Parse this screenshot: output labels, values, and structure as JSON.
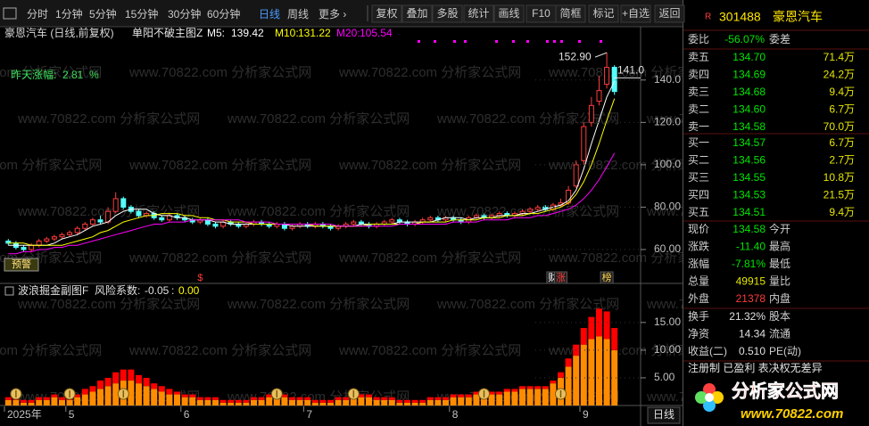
{
  "toolbar": {
    "left": [
      "分时",
      "1分钟",
      "5分钟",
      "15分钟",
      "30分钟",
      "60分钟",
      "日线",
      "周线",
      "更多 ›"
    ],
    "right": [
      "复权",
      "叠加",
      "多股",
      "统计",
      "画线",
      "F10",
      "简框",
      "标记",
      "+自选",
      "返回"
    ]
  },
  "watermark": "www.70822.com 分析家公式网",
  "chart_data": [
    {
      "type": "candlestick",
      "title": "豪恩汽车 (日线,前复权)",
      "indicator": "单阳不破主图Z",
      "categories": [
        "2025年",
        null,
        null,
        null,
        null,
        null,
        null,
        null,
        "5",
        null,
        null,
        null,
        null,
        null,
        null,
        null,
        null,
        null,
        null,
        null,
        null,
        null,
        null,
        "6",
        null,
        null,
        null,
        null,
        null,
        null,
        null,
        null,
        null,
        null,
        null,
        null,
        null,
        null,
        null,
        "7",
        null,
        null,
        null,
        null,
        null,
        null,
        null,
        null,
        null,
        null,
        null,
        null,
        null,
        null,
        null,
        null,
        null,
        null,
        "8",
        null,
        null,
        null,
        null,
        null,
        null,
        null,
        null,
        null,
        null,
        null,
        null,
        null,
        null,
        null,
        null,
        "9",
        null,
        null,
        null,
        null
      ],
      "open": [
        64,
        63,
        61,
        60,
        62,
        64,
        65,
        66,
        67,
        68,
        70,
        72,
        74,
        73,
        78,
        84,
        80,
        78,
        76,
        77,
        75,
        74,
        76,
        75,
        74,
        73,
        74,
        72,
        71,
        73,
        72,
        71,
        72,
        73,
        72,
        71,
        72,
        70,
        71,
        72,
        71,
        72,
        71,
        70,
        71,
        72,
        73,
        72,
        71,
        72,
        73,
        74,
        73,
        72,
        73,
        74,
        75,
        74,
        75,
        74,
        73,
        75,
        76,
        75,
        76,
        77,
        76,
        77,
        78,
        79,
        80,
        79,
        81,
        82,
        90,
        102,
        120,
        130,
        138,
        146
      ],
      "high": [
        65,
        64,
        62,
        63,
        65,
        66,
        67,
        68,
        69,
        71,
        73,
        75,
        76,
        80,
        87,
        85,
        81,
        79,
        78,
        78,
        76,
        77,
        77,
        76,
        75,
        75,
        75,
        73,
        74,
        74,
        73,
        73,
        74,
        74,
        73,
        73,
        73,
        72,
        73,
        73,
        73,
        73,
        72,
        72,
        73,
        74,
        74,
        73,
        73,
        74,
        75,
        75,
        74,
        74,
        75,
        76,
        76,
        76,
        76,
        75,
        76,
        77,
        77,
        77,
        78,
        78,
        78,
        79,
        80,
        81,
        81,
        82,
        84,
        90,
        102,
        120,
        132,
        142,
        152.9,
        147
      ],
      "low": [
        62,
        60,
        59,
        59,
        61,
        63,
        64,
        65,
        66,
        67,
        69,
        71,
        72,
        72,
        77,
        79,
        77,
        75,
        75,
        74,
        73,
        73,
        74,
        73,
        72,
        72,
        71,
        70,
        70,
        71,
        70,
        70,
        71,
        71,
        70,
        70,
        69,
        69,
        70,
        70,
        70,
        70,
        69,
        69,
        70,
        71,
        71,
        70,
        70,
        71,
        72,
        72,
        71,
        71,
        72,
        73,
        73,
        73,
        73,
        72,
        72,
        74,
        74,
        74,
        75,
        75,
        75,
        76,
        77,
        78,
        78,
        78,
        80,
        81,
        89,
        100,
        118,
        128,
        136,
        133
      ],
      "close": [
        63,
        61,
        60,
        62,
        64,
        65,
        66,
        67,
        68,
        70,
        72,
        74,
        73,
        78,
        84,
        80,
        78,
        76,
        77,
        75,
        74,
        76,
        75,
        74,
        73,
        74,
        72,
        71,
        73,
        72,
        71,
        72,
        73,
        72,
        71,
        72,
        70,
        71,
        72,
        71,
        72,
        71,
        70,
        71,
        72,
        73,
        72,
        71,
        72,
        73,
        74,
        73,
        72,
        73,
        74,
        75,
        74,
        75,
        74,
        73,
        75,
        76,
        75,
        76,
        77,
        76,
        77,
        78,
        79,
        80,
        79,
        81,
        82,
        88,
        100,
        118,
        128,
        135,
        145.98,
        134.58
      ],
      "up_color": "#ff3c3c",
      "down_color": "#54ffff",
      "series": [
        {
          "name": "M5:",
          "color": "#ffffff",
          "values": [
            62,
            62,
            62,
            62,
            62,
            62,
            63,
            65,
            66,
            67,
            69,
            71,
            72,
            73,
            76,
            78,
            79,
            79,
            79,
            77,
            76,
            76,
            75,
            75,
            74,
            74,
            74,
            73,
            73,
            72,
            72,
            72,
            72,
            72,
            72,
            72,
            72,
            71,
            71,
            71,
            71,
            71,
            71,
            71,
            71,
            71,
            72,
            72,
            72,
            72,
            72,
            73,
            73,
            73,
            73,
            73,
            74,
            75,
            75,
            75,
            74,
            75,
            75,
            75,
            76,
            76,
            76,
            77,
            77,
            78,
            79,
            80,
            81,
            83,
            88,
            98,
            110,
            121,
            132,
            139.42
          ]
        },
        {
          "name": "M10:",
          "color": "#ffff00",
          "values": [
            63,
            63,
            63,
            62,
            62,
            62,
            62,
            62,
            63,
            64,
            65,
            66,
            68,
            69,
            71,
            73,
            74,
            75,
            76,
            76,
            77,
            77,
            77,
            76,
            76,
            75,
            75,
            74,
            74,
            73,
            73,
            73,
            72,
            72,
            72,
            72,
            72,
            72,
            72,
            72,
            71,
            71,
            71,
            71,
            71,
            71,
            71,
            72,
            72,
            72,
            72,
            72,
            72,
            72,
            73,
            73,
            73,
            73,
            74,
            74,
            74,
            74,
            75,
            75,
            75,
            76,
            76,
            76,
            77,
            77,
            78,
            79,
            80,
            82,
            86,
            92,
            100,
            110,
            121,
            131.22
          ]
        },
        {
          "name": "M20:",
          "color": "#ff00ff",
          "values": [
            58,
            58,
            59,
            59,
            60,
            60,
            61,
            61,
            62,
            62,
            63,
            64,
            65,
            66,
            67,
            68,
            69,
            70,
            71,
            72,
            72,
            73,
            73,
            73,
            74,
            74,
            74,
            74,
            74,
            74,
            74,
            73,
            73,
            73,
            73,
            72,
            72,
            72,
            72,
            72,
            72,
            72,
            72,
            71,
            71,
            71,
            71,
            71,
            71,
            71,
            71,
            72,
            72,
            72,
            72,
            72,
            72,
            72,
            73,
            73,
            73,
            73,
            74,
            74,
            74,
            74,
            75,
            75,
            75,
            76,
            76,
            77,
            78,
            79,
            81,
            84,
            88,
            93,
            99,
            105.54
          ]
        }
      ],
      "ylim": [
        52,
        158
      ],
      "yticks": [
        {
          "value": 140,
          "label": "140.0"
        },
        {
          "value": 120,
          "label": "120.0"
        },
        {
          "value": 100,
          "label": "100.0"
        },
        {
          "value": 80,
          "label": "80.00"
        },
        {
          "value": 60,
          "label": "60.00"
        }
      ],
      "annotations": [
        {
          "value": 152.9,
          "label": "152.90"
        },
        {
          "value": 141,
          "label": "141.0"
        }
      ],
      "note": {
        "label": "昨天涨幅:",
        "value": 2.81,
        "unit": "%"
      },
      "signals": [
        {
          "text": "$",
          "index": 25,
          "color": "#ff3c3c"
        },
        {
          "text": "财",
          "index": 71,
          "color": "#ffffff"
        },
        {
          "text": "涨",
          "index": 72,
          "color": "#ff3c3c"
        },
        {
          "text": "榜",
          "index": 78,
          "color": "#ffd24a"
        }
      ],
      "warning": "预警",
      "period_label": "日线"
    },
    {
      "type": "stacked_bar",
      "title": "波浪掘金副图F",
      "risk_label": "风险系数:",
      "risk_values": [
        -0.05,
        0
      ],
      "risk_value_labels": [
        "-0.05",
        "0.00"
      ],
      "risk_separator": ":",
      "series": [
        {
          "color": "#ff8c00",
          "values": [
            1,
            1,
            0.5,
            0.5,
            1,
            1,
            1.5,
            1,
            1,
            1.5,
            2,
            2.5,
            3,
            3.5,
            4,
            4.5,
            4.5,
            4,
            3.5,
            3,
            2.5,
            2,
            2,
            1.5,
            1.5,
            1,
            1,
            1,
            0.5,
            0.5,
            0.5,
            0.5,
            1,
            1,
            1.5,
            1.5,
            1.5,
            1,
            1,
            1,
            0.5,
            0.5,
            0.5,
            1,
            1,
            1.5,
            1.5,
            1.5,
            1,
            1,
            1,
            0.5,
            0.5,
            0.5,
            0.5,
            1,
            1,
            1,
            1.5,
            1.5,
            1.5,
            2,
            2,
            2,
            2,
            2.5,
            2.5,
            3,
            3,
            3,
            3,
            4,
            5,
            7,
            9,
            11,
            12,
            12.5,
            12,
            10
          ]
        },
        {
          "color": "#ff0000",
          "values": [
            0.5,
            0.5,
            0.5,
            0.5,
            0.5,
            0.5,
            0.5,
            0.5,
            0.5,
            0.5,
            1,
            1,
            1.5,
            1.5,
            2,
            2,
            2,
            1.5,
            1.5,
            1,
            1,
            1,
            0.5,
            0.5,
            0.5,
            0.5,
            0.5,
            0.5,
            0.5,
            0.5,
            0.5,
            0.5,
            0.5,
            0.5,
            0.5,
            0.5,
            0.5,
            0.5,
            0.5,
            0.5,
            0.5,
            0.5,
            0.5,
            0.5,
            0.5,
            0.5,
            0.5,
            0.5,
            0.5,
            0.5,
            0.5,
            0.5,
            0.5,
            0.5,
            0.5,
            0.5,
            0.5,
            0.5,
            0.5,
            0.5,
            0.5,
            0.5,
            0.5,
            0.5,
            0.5,
            0.5,
            0.5,
            0.5,
            0.5,
            0.5,
            0.5,
            0.5,
            1,
            1.5,
            2,
            3,
            4,
            5,
            5,
            4
          ]
        }
      ],
      "ylim": [
        0,
        19
      ],
      "yticks": [
        {
          "value": 15,
          "label": "15.00"
        },
        {
          "value": 10,
          "label": "10.00"
        },
        {
          "value": 5,
          "label": "5.00"
        }
      ]
    }
  ],
  "quote": {
    "badge": "R",
    "code": "301488",
    "name": "豪恩汽车",
    "ratio": {
      "label": "委比",
      "value": "-56.07%",
      "label2": "委差",
      "color": "#00e600"
    },
    "price_color": "#00e600",
    "volume_color": "#e6e600",
    "asks": [
      [
        "卖五",
        "134.70",
        "71.4万"
      ],
      [
        "卖四",
        "134.69",
        "24.2万"
      ],
      [
        "卖三",
        "134.68",
        "9.4万"
      ],
      [
        "卖二",
        "134.60",
        "6.7万"
      ],
      [
        "卖一",
        "134.58",
        "70.0万"
      ]
    ],
    "bids": [
      [
        "买一",
        "134.57",
        "6.7万"
      ],
      [
        "买二",
        "134.56",
        "2.7万"
      ],
      [
        "买三",
        "134.55",
        "10.8万"
      ],
      [
        "买四",
        "134.53",
        "21.5万"
      ],
      [
        "买五",
        "134.51",
        "9.4万"
      ]
    ],
    "stats": [
      {
        "label": "现价",
        "value": "134.58",
        "label2": "今开",
        "color": "#00e600"
      },
      {
        "label": "涨跌",
        "value": "-11.40",
        "label2": "最高",
        "color": "#00e600"
      },
      {
        "label": "涨幅",
        "value": "-7.81%",
        "label2": "最低",
        "color": "#00e600"
      },
      {
        "label": "总量",
        "value": "49915",
        "label2": "量比",
        "color": "#e6e600"
      },
      {
        "label": "外盘",
        "value": "21378",
        "label2": "内盘",
        "color": "#ff3c3c"
      }
    ],
    "stats2": [
      {
        "label": "换手",
        "value": "21.32%",
        "label2": "股本",
        "color": "#e0e0e0"
      },
      {
        "label": "净资",
        "value": "14.34",
        "label2": "流通",
        "color": "#e0e0e0"
      },
      {
        "label": "收益(二)",
        "value": "0.510",
        "label2": "PE(动)",
        "color": "#e0e0e0"
      }
    ],
    "tags": "注册制 已盈利 表决权无差异"
  },
  "logo": {
    "name": "分析家公式网",
    "url": "www.70822.com"
  }
}
